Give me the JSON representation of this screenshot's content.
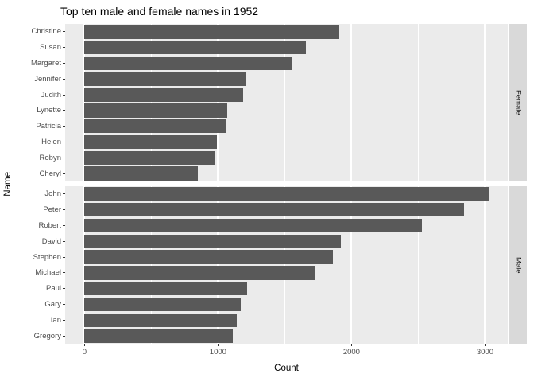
{
  "chart_data": {
    "type": "bar",
    "orientation": "horizontal",
    "title": "Top ten male and female names in 1952",
    "xlabel": "Count",
    "ylabel": "Name",
    "x_ticks": [
      0,
      1000,
      2000,
      3000
    ],
    "x_minor_gridlines": [
      500,
      1500,
      2500
    ],
    "xlim": [
      -145,
      3170
    ],
    "legend": "none",
    "grid": "white major and minor vertical gridlines on grey panel",
    "facets": [
      {
        "label": "Female",
        "categories": [
          "Christine",
          "Susan",
          "Margaret",
          "Jennifer",
          "Judith",
          "Lynette",
          "Patricia",
          "Helen",
          "Robyn",
          "Cheryl"
        ],
        "values": [
          1900,
          1660,
          1550,
          1210,
          1190,
          1070,
          1060,
          990,
          980,
          850
        ]
      },
      {
        "label": "Male",
        "categories": [
          "John",
          "Peter",
          "Robert",
          "David",
          "Stephen",
          "Michael",
          "Paul",
          "Gary",
          "Ian",
          "Gregory"
        ],
        "values": [
          3030,
          2840,
          2530,
          1920,
          1860,
          1730,
          1220,
          1170,
          1140,
          1110
        ]
      }
    ],
    "colors": {
      "bar": "#595959",
      "panel_background": "#ebebeb",
      "strip_background": "#d9d9d9",
      "gridline": "#ffffff",
      "axis_text": "#4d4d4d",
      "tick_mark": "#333333",
      "title_text": "#000000"
    }
  }
}
